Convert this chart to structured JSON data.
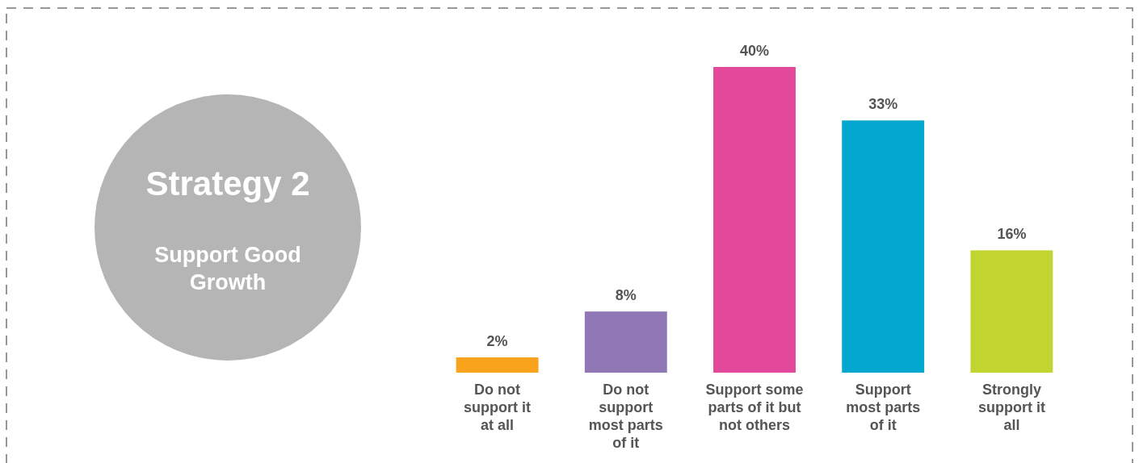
{
  "chart_data": {
    "type": "bar",
    "title": "Strategy 2",
    "subtitle": "Support Good Growth",
    "categories": [
      "Do not support it at all",
      "Do not support most parts of it",
      "Support some parts of it but not others",
      "Support most parts of it",
      "Strongly support it all"
    ],
    "values": [
      2,
      8,
      40,
      33,
      16
    ],
    "colors": [
      "#f8a31b",
      "#9078b6",
      "#e2499a",
      "#03a7d0",
      "#c1d42f"
    ],
    "value_labels": [
      "2%",
      "8%",
      "40%",
      "33%",
      "16%"
    ]
  }
}
